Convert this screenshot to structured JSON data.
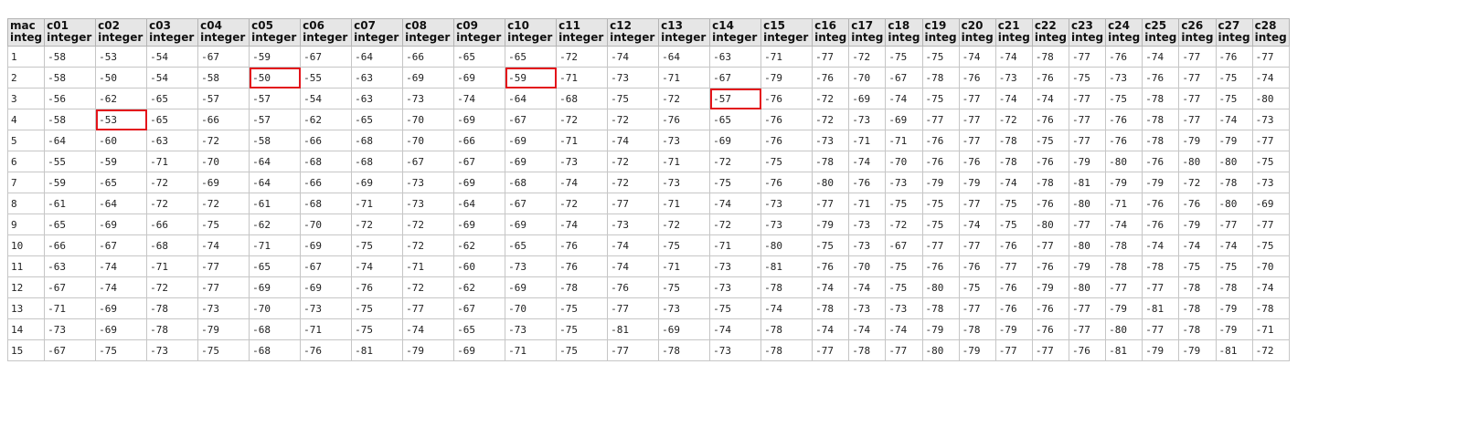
{
  "table": {
    "columns": [
      {
        "name": "mac",
        "type": "integ"
      },
      {
        "name": "c01",
        "type": "integer"
      },
      {
        "name": "c02",
        "type": "integer"
      },
      {
        "name": "c03",
        "type": "integer"
      },
      {
        "name": "c04",
        "type": "integer"
      },
      {
        "name": "c05",
        "type": "integer"
      },
      {
        "name": "c06",
        "type": "integer"
      },
      {
        "name": "c07",
        "type": "integer"
      },
      {
        "name": "c08",
        "type": "integer"
      },
      {
        "name": "c09",
        "type": "integer"
      },
      {
        "name": "c10",
        "type": "integer"
      },
      {
        "name": "c11",
        "type": "integer"
      },
      {
        "name": "c12",
        "type": "integer"
      },
      {
        "name": "c13",
        "type": "integer"
      },
      {
        "name": "c14",
        "type": "integer"
      },
      {
        "name": "c15",
        "type": "integer"
      },
      {
        "name": "c16",
        "type": "integ"
      },
      {
        "name": "c17",
        "type": "integ"
      },
      {
        "name": "c18",
        "type": "integ"
      },
      {
        "name": "c19",
        "type": "integ"
      },
      {
        "name": "c20",
        "type": "integ"
      },
      {
        "name": "c21",
        "type": "integ"
      },
      {
        "name": "c22",
        "type": "integ"
      },
      {
        "name": "c23",
        "type": "integ"
      },
      {
        "name": "c24",
        "type": "integ"
      },
      {
        "name": "c25",
        "type": "integ"
      },
      {
        "name": "c26",
        "type": "integ"
      },
      {
        "name": "c27",
        "type": "integ"
      },
      {
        "name": "c28",
        "type": "integ"
      }
    ],
    "rows": [
      [
        "1",
        "-58",
        "-53",
        "-54",
        "-67",
        "-59",
        "-67",
        "-64",
        "-66",
        "-65",
        "-65",
        "-72",
        "-74",
        "-64",
        "-63",
        "-71",
        "-77",
        "-72",
        "-75",
        "-75",
        "-74",
        "-74",
        "-78",
        "-77",
        "-76",
        "-74",
        "-77",
        "-76",
        "-77"
      ],
      [
        "2",
        "-58",
        "-50",
        "-54",
        "-58",
        "-50",
        "-55",
        "-63",
        "-69",
        "-69",
        "-59",
        "-71",
        "-73",
        "-71",
        "-67",
        "-79",
        "-76",
        "-70",
        "-67",
        "-78",
        "-76",
        "-73",
        "-76",
        "-75",
        "-73",
        "-76",
        "-77",
        "-75",
        "-74"
      ],
      [
        "3",
        "-56",
        "-62",
        "-65",
        "-57",
        "-57",
        "-54",
        "-63",
        "-73",
        "-74",
        "-64",
        "-68",
        "-75",
        "-72",
        "-57",
        "-76",
        "-72",
        "-69",
        "-74",
        "-75",
        "-77",
        "-74",
        "-74",
        "-77",
        "-75",
        "-78",
        "-77",
        "-75",
        "-80"
      ],
      [
        "4",
        "-58",
        "-53",
        "-65",
        "-66",
        "-57",
        "-62",
        "-65",
        "-70",
        "-69",
        "-67",
        "-72",
        "-72",
        "-76",
        "-65",
        "-76",
        "-72",
        "-73",
        "-69",
        "-77",
        "-77",
        "-72",
        "-76",
        "-77",
        "-76",
        "-78",
        "-77",
        "-74",
        "-73"
      ],
      [
        "5",
        "-64",
        "-60",
        "-63",
        "-72",
        "-58",
        "-66",
        "-68",
        "-70",
        "-66",
        "-69",
        "-71",
        "-74",
        "-73",
        "-69",
        "-76",
        "-73",
        "-71",
        "-71",
        "-76",
        "-77",
        "-78",
        "-75",
        "-77",
        "-76",
        "-78",
        "-79",
        "-79",
        "-77"
      ],
      [
        "6",
        "-55",
        "-59",
        "-71",
        "-70",
        "-64",
        "-68",
        "-68",
        "-67",
        "-67",
        "-69",
        "-73",
        "-72",
        "-71",
        "-72",
        "-75",
        "-78",
        "-74",
        "-70",
        "-76",
        "-76",
        "-78",
        "-76",
        "-79",
        "-80",
        "-76",
        "-80",
        "-80",
        "-75"
      ],
      [
        "7",
        "-59",
        "-65",
        "-72",
        "-69",
        "-64",
        "-66",
        "-69",
        "-73",
        "-69",
        "-68",
        "-74",
        "-72",
        "-73",
        "-75",
        "-76",
        "-80",
        "-76",
        "-73",
        "-79",
        "-79",
        "-74",
        "-78",
        "-81",
        "-79",
        "-79",
        "-72",
        "-78",
        "-73"
      ],
      [
        "8",
        "-61",
        "-64",
        "-72",
        "-72",
        "-61",
        "-68",
        "-71",
        "-73",
        "-64",
        "-67",
        "-72",
        "-77",
        "-71",
        "-74",
        "-73",
        "-77",
        "-71",
        "-75",
        "-75",
        "-77",
        "-75",
        "-76",
        "-80",
        "-71",
        "-76",
        "-76",
        "-80",
        "-69"
      ],
      [
        "9",
        "-65",
        "-69",
        "-66",
        "-75",
        "-62",
        "-70",
        "-72",
        "-72",
        "-69",
        "-69",
        "-74",
        "-73",
        "-72",
        "-72",
        "-73",
        "-79",
        "-73",
        "-72",
        "-75",
        "-74",
        "-75",
        "-80",
        "-77",
        "-74",
        "-76",
        "-79",
        "-77",
        "-77"
      ],
      [
        "10",
        "-66",
        "-67",
        "-68",
        "-74",
        "-71",
        "-69",
        "-75",
        "-72",
        "-62",
        "-65",
        "-76",
        "-74",
        "-75",
        "-71",
        "-80",
        "-75",
        "-73",
        "-67",
        "-77",
        "-77",
        "-76",
        "-77",
        "-80",
        "-78",
        "-74",
        "-74",
        "-74",
        "-75"
      ],
      [
        "11",
        "-63",
        "-74",
        "-71",
        "-77",
        "-65",
        "-67",
        "-74",
        "-71",
        "-60",
        "-73",
        "-76",
        "-74",
        "-71",
        "-73",
        "-81",
        "-76",
        "-70",
        "-75",
        "-76",
        "-76",
        "-77",
        "-76",
        "-79",
        "-78",
        "-78",
        "-75",
        "-75",
        "-70"
      ],
      [
        "12",
        "-67",
        "-74",
        "-72",
        "-77",
        "-69",
        "-69",
        "-76",
        "-72",
        "-62",
        "-69",
        "-78",
        "-76",
        "-75",
        "-73",
        "-78",
        "-74",
        "-74",
        "-75",
        "-80",
        "-75",
        "-76",
        "-79",
        "-80",
        "-77",
        "-77",
        "-78",
        "-78",
        "-74"
      ],
      [
        "13",
        "-71",
        "-69",
        "-78",
        "-73",
        "-70",
        "-73",
        "-75",
        "-77",
        "-67",
        "-70",
        "-75",
        "-77",
        "-73",
        "-75",
        "-74",
        "-78",
        "-73",
        "-73",
        "-78",
        "-77",
        "-76",
        "-76",
        "-77",
        "-79",
        "-81",
        "-78",
        "-79",
        "-78"
      ],
      [
        "14",
        "-73",
        "-69",
        "-78",
        "-79",
        "-68",
        "-71",
        "-75",
        "-74",
        "-65",
        "-73",
        "-75",
        "-81",
        "-69",
        "-74",
        "-78",
        "-74",
        "-74",
        "-74",
        "-79",
        "-78",
        "-79",
        "-76",
        "-77",
        "-80",
        "-77",
        "-78",
        "-79",
        "-71"
      ],
      [
        "15",
        "-67",
        "-75",
        "-73",
        "-75",
        "-68",
        "-76",
        "-81",
        "-79",
        "-69",
        "-71",
        "-75",
        "-77",
        "-78",
        "-73",
        "-78",
        "-77",
        "-78",
        "-77",
        "-80",
        "-79",
        "-77",
        "-77",
        "-76",
        "-81",
        "-79",
        "-79",
        "-81",
        "-72"
      ]
    ],
    "highlighted_cells": [
      {
        "row": 1,
        "col": 5
      },
      {
        "row": 1,
        "col": 10
      },
      {
        "row": 2,
        "col": 14
      },
      {
        "row": 3,
        "col": 2
      }
    ],
    "highlight_color": "#e3141b"
  }
}
